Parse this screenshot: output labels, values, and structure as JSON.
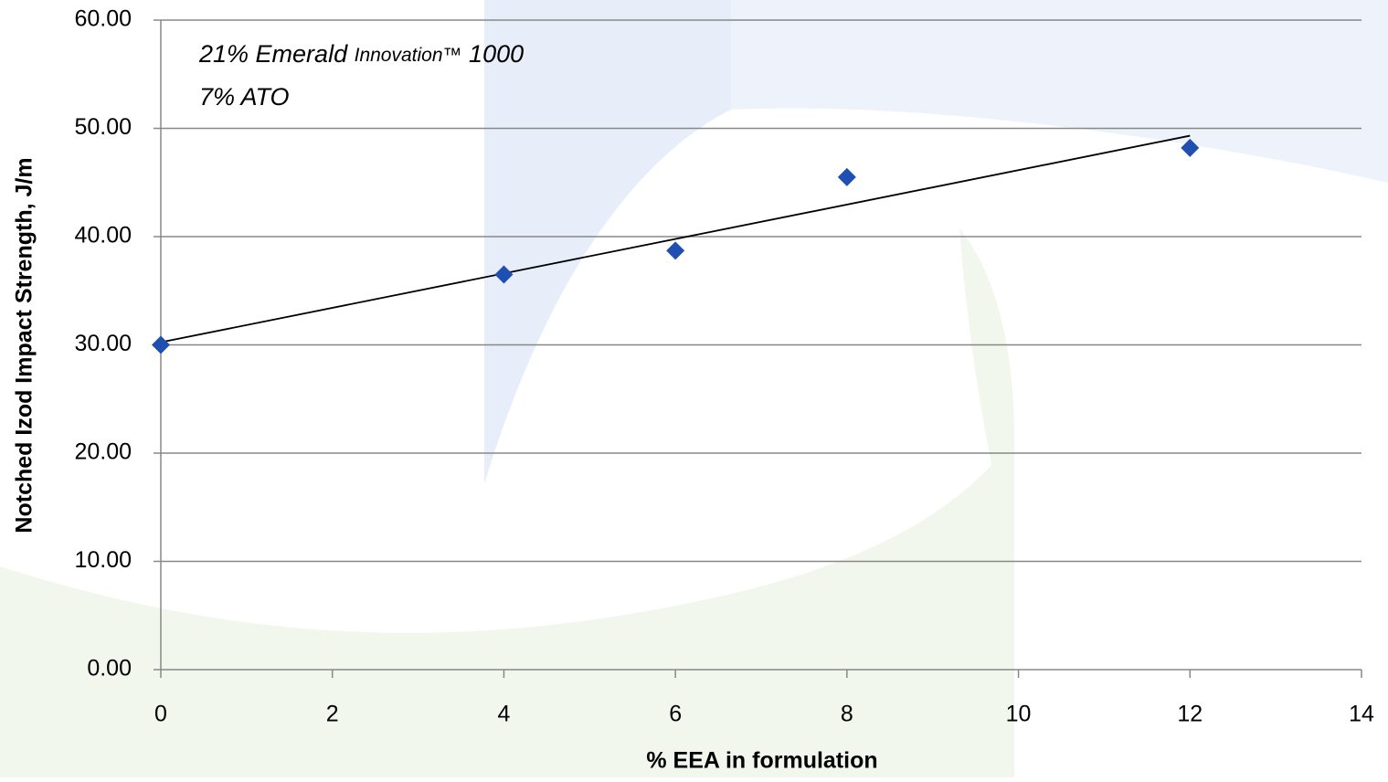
{
  "chart_data": {
    "type": "scatter",
    "annotations": [
      [
        "21% Emerald",
        "Innovation™",
        "1000"
      ],
      [
        "7%  ATO"
      ]
    ],
    "x_label": "% EEA in formulation",
    "y_label": "Notched Izod Impact Strength, J/m",
    "series": [
      {
        "color": "#1f4fb0",
        "x": [
          0,
          4,
          6,
          8,
          12
        ],
        "values": [
          30.0,
          36.5,
          38.7,
          45.5,
          48.2
        ]
      }
    ],
    "trendline": "linear",
    "xlim": [
      0,
      14
    ],
    "xticks": [
      0,
      2,
      4,
      6,
      8,
      10,
      12,
      14
    ],
    "ylim": [
      0,
      60
    ],
    "yticks": [
      {
        "value": 0,
        "label": "0.00"
      },
      {
        "value": 10,
        "label": "10.00"
      },
      {
        "value": 20,
        "label": "20.00"
      },
      {
        "value": 30,
        "label": "30.00"
      },
      {
        "value": 40,
        "label": "40.00"
      },
      {
        "value": 50,
        "label": "50.00"
      },
      {
        "value": 60,
        "label": "60.00"
      }
    ],
    "grid": true
  }
}
